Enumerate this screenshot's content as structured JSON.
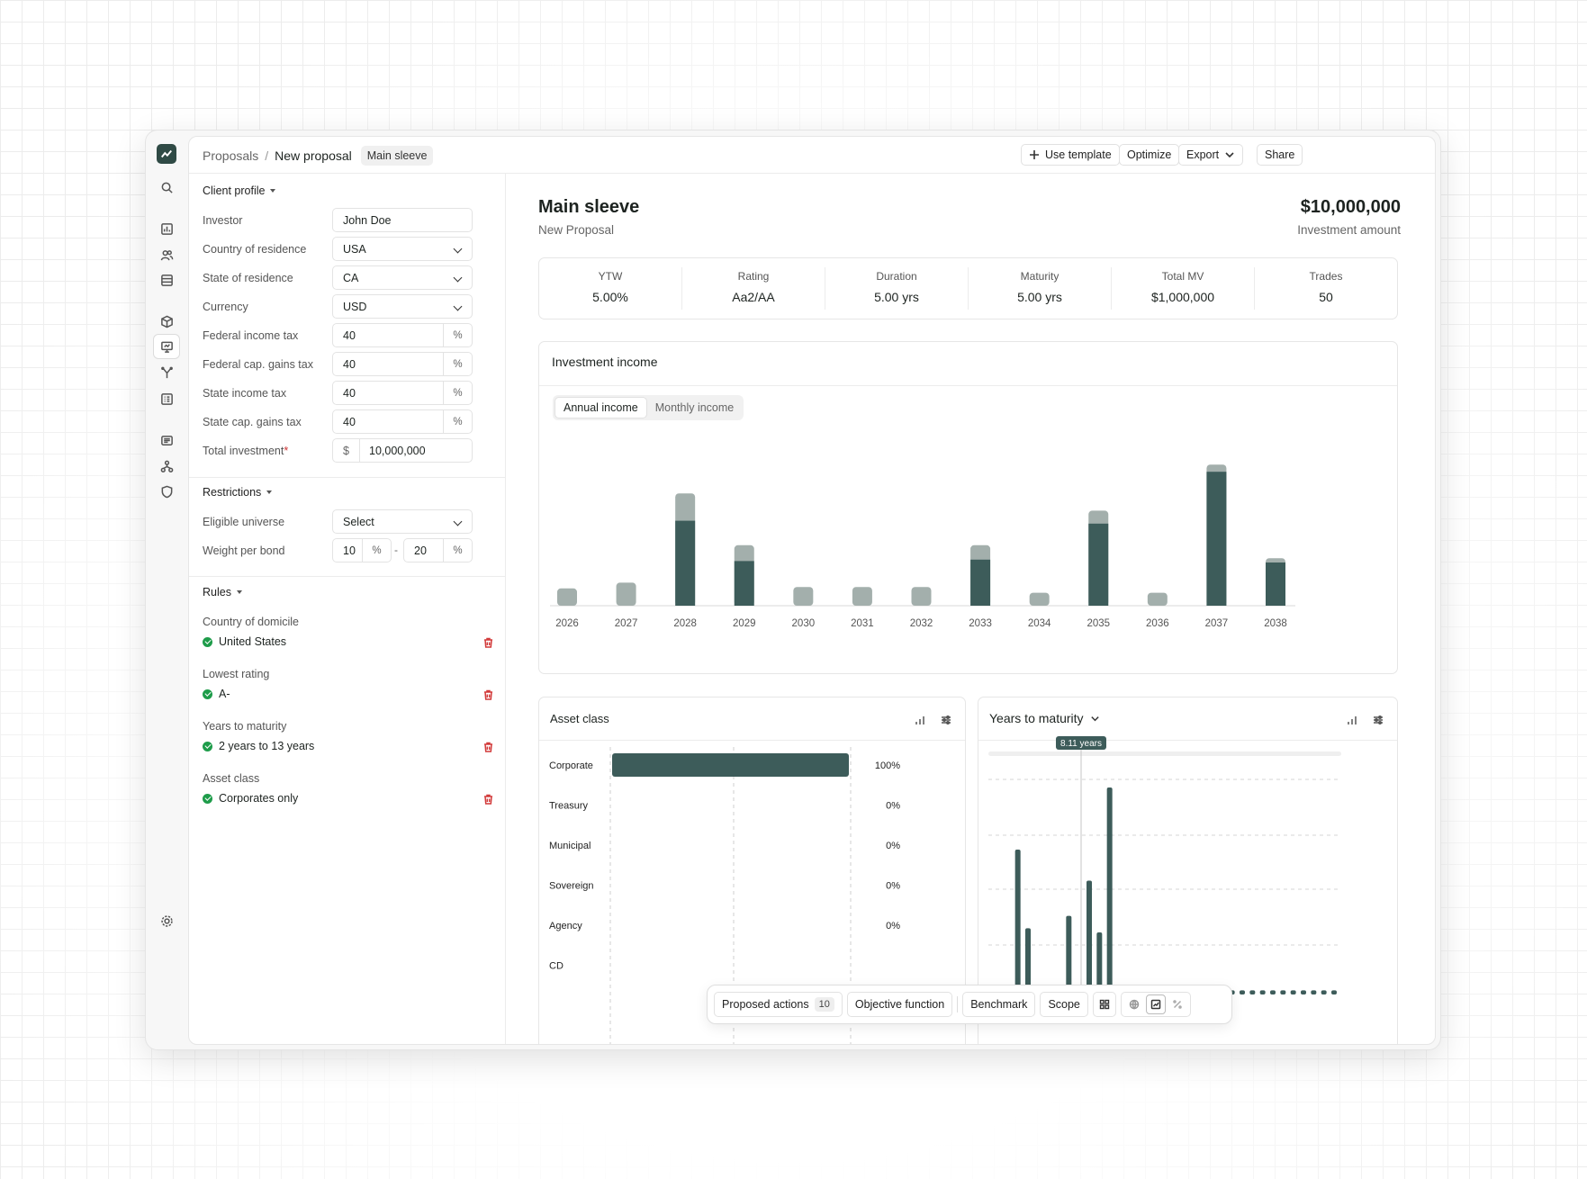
{
  "breadcrumb": {
    "root": "Proposals",
    "sep": "/",
    "current": "New proposal",
    "tag": "Main sleeve"
  },
  "toolbar": {
    "use_template": "Use template",
    "optimize": "Optimize",
    "export": "Export",
    "share": "Share"
  },
  "client_profile": {
    "title": "Client profile",
    "investor": {
      "label": "Investor",
      "value": "John Doe"
    },
    "country": {
      "label": "Country of residence",
      "value": "USA"
    },
    "state": {
      "label": "State of residence",
      "value": "CA"
    },
    "currency": {
      "label": "Currency",
      "value": "USD"
    },
    "fed_income": {
      "label": "Federal income tax",
      "value": "40",
      "unit": "%"
    },
    "fed_cap": {
      "label": "Federal cap. gains tax",
      "value": "40",
      "unit": "%"
    },
    "state_income": {
      "label": "State income tax",
      "value": "40",
      "unit": "%"
    },
    "state_cap": {
      "label": "State cap. gains tax",
      "value": "40",
      "unit": "%"
    },
    "total": {
      "label": "Total investment",
      "required": "*",
      "prefix": "$",
      "value": "10,000,000"
    }
  },
  "restrictions": {
    "title": "Restrictions",
    "universe": {
      "label": "Eligible universe",
      "value": "Select"
    },
    "weight": {
      "label": "Weight per bond",
      "min": "10",
      "max": "20",
      "unit": "%",
      "dash": "-"
    }
  },
  "rules": {
    "title": "Rules",
    "items": [
      {
        "label": "Country of domicile",
        "value": "United States"
      },
      {
        "label": "Lowest rating",
        "value": "A-"
      },
      {
        "label": "Years to maturity",
        "value": "2 years to 13 years"
      },
      {
        "label": "Asset class",
        "value": "Corporates only"
      }
    ]
  },
  "header": {
    "title": "Main sleeve",
    "subtitle": "New Proposal",
    "amount": "$10,000,000",
    "amount_label": "Investment amount"
  },
  "stats": [
    {
      "k": "YTW",
      "v": "5.00%"
    },
    {
      "k": "Rating",
      "v": "Aa2/AA"
    },
    {
      "k": "Duration",
      "v": "5.00 yrs"
    },
    {
      "k": "Maturity",
      "v": "5.00 yrs"
    },
    {
      "k": "Total MV",
      "v": "$1,000,000"
    },
    {
      "k": "Trades",
      "v": "50"
    }
  ],
  "colors": {
    "dark": "#3d5c5a",
    "light": "#a3afac",
    "accent": "#2f4a45"
  },
  "income_card": {
    "title": "Investment income",
    "tab_annual": "Annual income",
    "tab_monthly": "Monthly income"
  },
  "asset_card": {
    "title": "Asset class"
  },
  "ytm_card": {
    "title": "Years to maturity",
    "marker": "8.11 years"
  },
  "float_bar": {
    "proposed": "Proposed actions",
    "proposed_count": "10",
    "objective": "Objective function",
    "benchmark": "Benchmark",
    "scope": "Scope"
  },
  "chart_data": [
    {
      "type": "bar",
      "categories": [
        "2026",
        "2027",
        "2028",
        "2029",
        "2030",
        "2031",
        "2032",
        "2033",
        "2034",
        "2035",
        "2036",
        "2037",
        "2038"
      ],
      "series": [
        {
          "values": [
            0,
            0,
            59,
            31,
            0,
            0,
            0,
            32,
            0,
            57,
            0,
            93,
            30
          ]
        },
        {
          "values": [
            12,
            16,
            78,
            42,
            13,
            13,
            13,
            42,
            9,
            66,
            9,
            98,
            33
          ]
        }
      ]
    },
    {
      "type": "bar",
      "categories": [
        "Corporate",
        "Treasury",
        "Municipal",
        "Sovereign",
        "Agency",
        "CD"
      ],
      "values": [
        100,
        0,
        0,
        0,
        0,
        null
      ],
      "value_labels": [
        "100%",
        "0%",
        "0%",
        "0%",
        "0%",
        ""
      ]
    },
    {
      "type": "bar",
      "values": [
        2,
        2,
        70,
        32,
        2,
        2,
        2,
        38,
        1,
        55,
        30,
        100,
        2,
        2,
        2,
        2,
        2,
        2,
        2,
        2,
        2,
        2,
        2,
        2,
        2,
        2,
        2,
        2,
        2,
        2,
        2,
        2,
        2,
        2
      ]
    }
  ]
}
